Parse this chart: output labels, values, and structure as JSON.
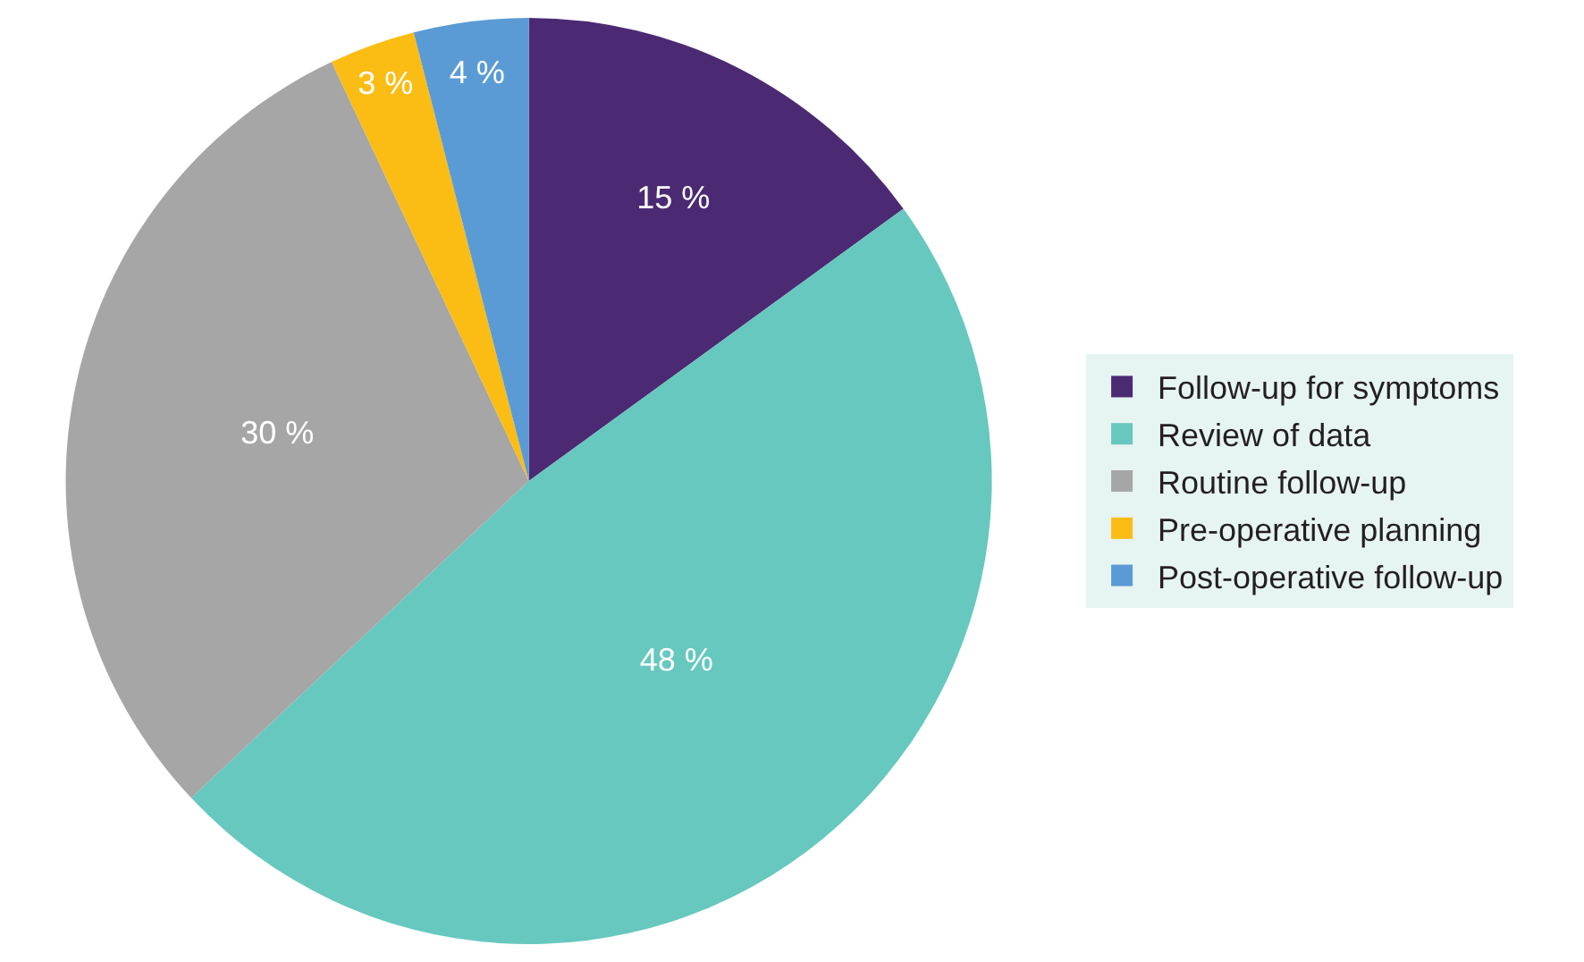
{
  "chart_data": {
    "type": "pie",
    "categories": [
      "Follow-up for symptoms",
      "Review of data",
      "Routine follow-up",
      "Pre-operative planning",
      "Post-operative follow-up"
    ],
    "values": [
      15,
      48,
      30,
      3,
      4
    ],
    "colors": [
      "#4b2a73",
      "#66c8be",
      "#a6a6a6",
      "#fbbd14",
      "#5b9bd5"
    ],
    "value_labels": [
      "15 %",
      "48 %",
      "30 %",
      "3 %",
      "4 %"
    ],
    "legend": "right"
  }
}
